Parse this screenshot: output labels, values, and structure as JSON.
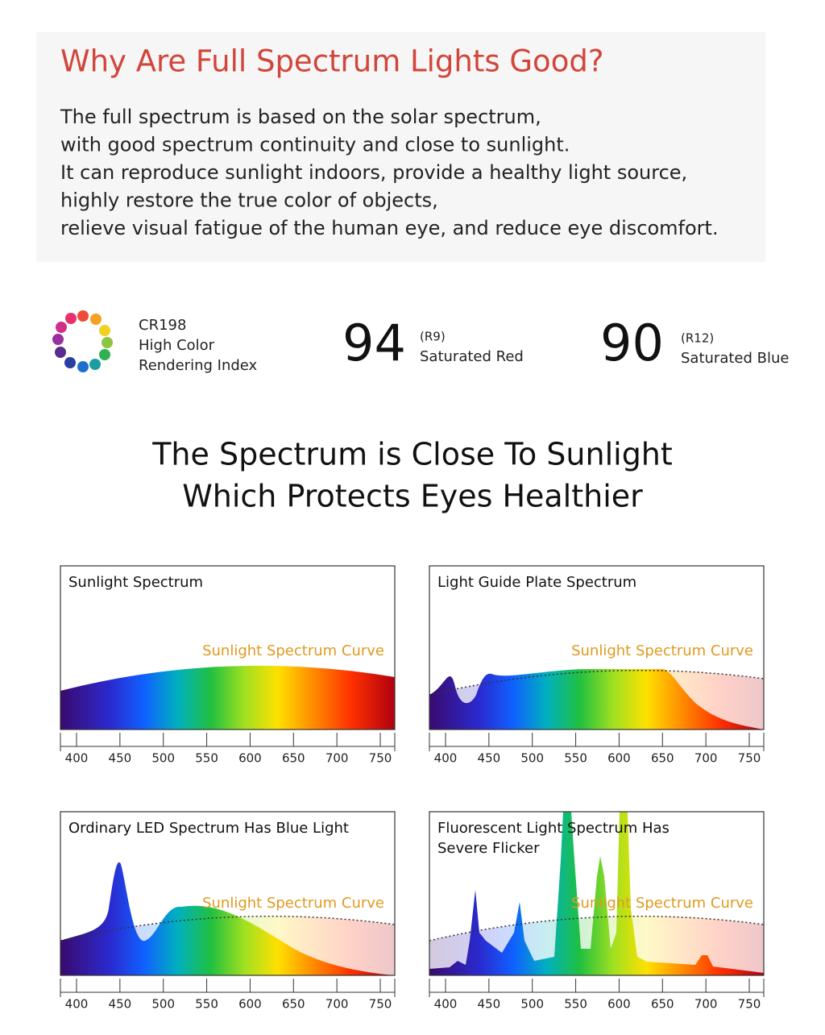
{
  "header": {
    "title": "Why Are Full Spectrum Lights Good?",
    "paragraph": [
      "The full spectrum is based on the solar spectrum,",
      "with good spectrum continuity and close to sunlight.",
      "It can reproduce sunlight indoors, provide a healthy light source,",
      "highly restore the true color of objects,",
      "relieve visual fatigue of the human eye, and reduce eye discomfort."
    ]
  },
  "stats": {
    "cri": [
      "CR198",
      "High Color",
      "Rendering Index"
    ],
    "items": [
      {
        "value": "94",
        "code": "(R9)",
        "label": "Saturated Red"
      },
      {
        "value": "90",
        "code": "(R12)",
        "label": "Saturated Blue"
      }
    ]
  },
  "heading": [
    "The Spectrum is Close To Sunlight",
    "Which Protects Eyes Healthier"
  ],
  "panels": [
    {
      "title": [
        "Sunlight Spectrum"
      ],
      "curve_label": "Sunlight Spectrum Curve",
      "ticks": [
        400,
        450,
        500,
        550,
        600,
        650,
        700,
        750
      ]
    },
    {
      "title": [
        "Light Guide Plate Spectrum"
      ],
      "curve_label": "Sunlight Spectrum Curve",
      "ticks": [
        400,
        450,
        500,
        550,
        600,
        650,
        700,
        750
      ]
    },
    {
      "title": [
        "Ordinary LED Spectrum Has Blue Light"
      ],
      "curve_label": "Sunlight Spectrum Curve",
      "ticks": [
        400,
        450,
        500,
        550,
        600,
        650,
        700,
        750
      ]
    },
    {
      "title": [
        "Fluorescent Light Spectrum Has",
        "Severe Flicker"
      ],
      "curve_label": "Sunlight Spectrum Curve",
      "ticks": [
        400,
        450,
        500,
        550,
        600,
        650,
        700,
        750
      ]
    }
  ]
}
